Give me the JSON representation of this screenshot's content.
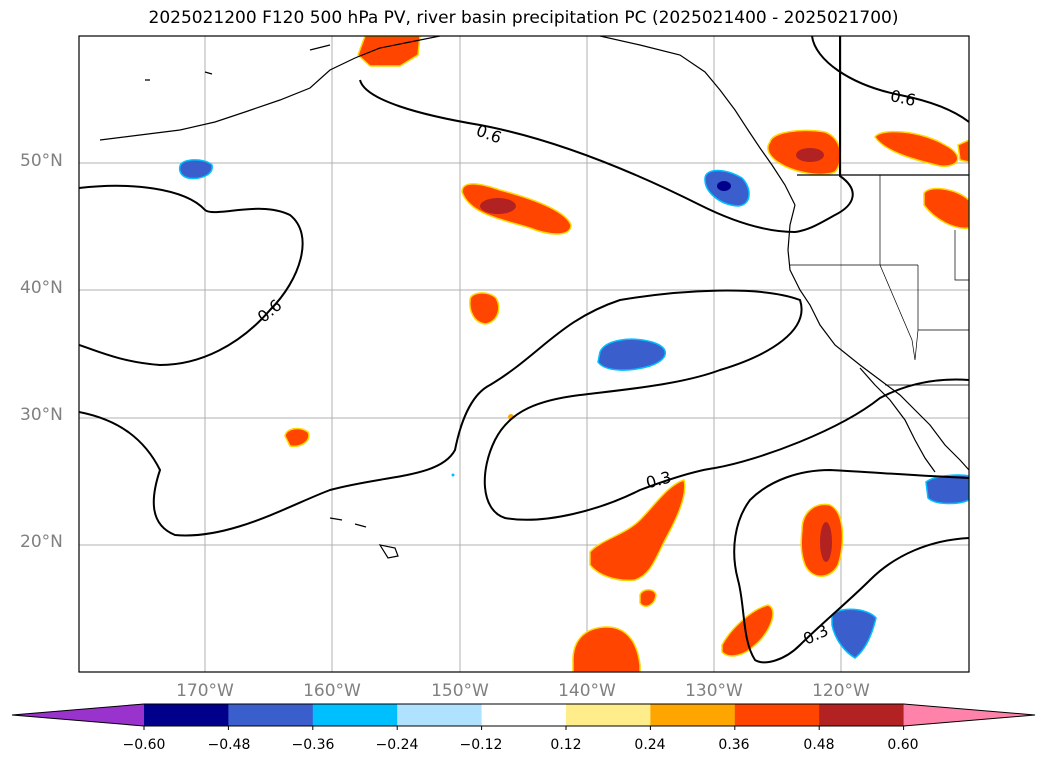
{
  "title": "2025021200 F120 500 hPa PV, river basin precipitation PC (2025021400 - 2025021700)",
  "map": {
    "projection": "PlateCarree",
    "lon_range": [
      -180,
      -110
    ],
    "lat_range": [
      10,
      60
    ],
    "lat_labels": [
      "20°N",
      "30°N",
      "40°N",
      "50°N"
    ],
    "lon_labels": [
      "170°W",
      "160°W",
      "150°W",
      "140°W",
      "130°W",
      "120°W"
    ],
    "contour_labels": [
      "0.6",
      "0.6",
      "0.6",
      "0.3",
      "0.3"
    ]
  },
  "colorbar": {
    "ticks": [
      "−0.60",
      "−0.48",
      "−0.36",
      "−0.24",
      "−0.12",
      "0.12",
      "0.24",
      "0.36",
      "0.48",
      "0.60"
    ],
    "colors": [
      "#9a32cd",
      "#00008b",
      "#3a5fcd",
      "#00bfff",
      "#b0e2ff",
      "#ffffff",
      "#ffec8b",
      "#ffa500",
      "#ff4500",
      "#b22222",
      "#ff82ab"
    ]
  }
}
